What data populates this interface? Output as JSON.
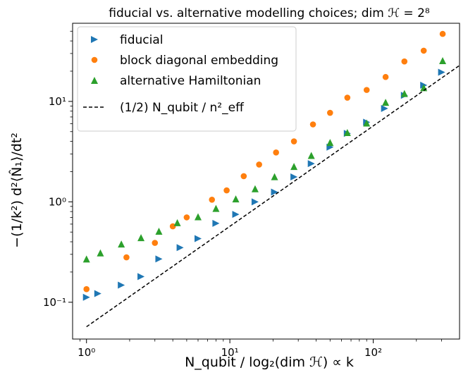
{
  "chart_data": {
    "type": "scatter",
    "title": "fiducial vs. alternative modelling choices; dim ℋ = 2⁸",
    "xlabel": "N_qubit / log₂(dim ℋ)  ∝  k",
    "ylabel": "−(1/k²) d²⟨N̂₁⟩/dt²",
    "x_scale": "log",
    "y_scale": "log",
    "xlim": [
      0.8,
      400
    ],
    "ylim": [
      0.043,
      60
    ],
    "x_ticks": [
      {
        "value": 1,
        "label": "10⁰"
      },
      {
        "value": 10,
        "label": "10¹"
      },
      {
        "value": 100,
        "label": "10²"
      }
    ],
    "y_ticks": [
      {
        "value": 0.1,
        "label": "10⁻¹"
      },
      {
        "value": 1,
        "label": "10⁰"
      },
      {
        "value": 10,
        "label": "10¹"
      }
    ],
    "grid": false,
    "legend_position": "top-left",
    "series": [
      {
        "name": "fiducial",
        "marker": "triangle-right",
        "color": "#1f77b4",
        "x": [
          1.0,
          1.2,
          1.75,
          2.4,
          3.2,
          4.5,
          6.0,
          8.0,
          11.0,
          15.0,
          20.5,
          28.0,
          37.0,
          50.0,
          66.0,
          90.0,
          120.0,
          165.0,
          225.0,
          300.0
        ],
        "y": [
          0.112,
          0.122,
          0.148,
          0.18,
          0.27,
          0.35,
          0.43,
          0.61,
          0.75,
          1.0,
          1.25,
          1.77,
          2.4,
          3.5,
          4.8,
          6.2,
          8.5,
          11.5,
          14.5,
          19.5
        ]
      },
      {
        "name": "block diagonal embedding",
        "marker": "circle",
        "color": "#ff7f0e",
        "x": [
          1.0,
          1.9,
          3.0,
          4.0,
          5.0,
          7.5,
          9.5,
          12.5,
          16.0,
          21.0,
          28.0,
          38.0,
          50.0,
          66.0,
          90.0,
          122.0,
          165.0,
          225.0,
          305.0
        ],
        "y": [
          0.135,
          0.28,
          0.39,
          0.57,
          0.7,
          1.05,
          1.3,
          1.8,
          2.35,
          3.1,
          4.0,
          5.9,
          7.7,
          10.9,
          13.0,
          17.5,
          25.0,
          32.0,
          47.0
        ]
      },
      {
        "name": "alternative Hamiltonian",
        "marker": "triangle-up",
        "color": "#2ca02c",
        "x": [
          1.0,
          1.25,
          1.75,
          2.4,
          3.2,
          4.3,
          6.0,
          8.0,
          11.0,
          15.0,
          20.5,
          28.0,
          37.0,
          50.0,
          66.0,
          90.0,
          122.0,
          165.0,
          225.0,
          305.0
        ],
        "y": [
          0.27,
          0.31,
          0.38,
          0.44,
          0.51,
          0.62,
          0.71,
          0.86,
          1.07,
          1.35,
          1.78,
          2.25,
          2.9,
          3.9,
          4.9,
          6.1,
          9.8,
          12.0,
          13.7,
          25.5
        ]
      },
      {
        "name": "(1/2) N_qubit / n²_eff",
        "marker": "line-dashed",
        "color": "#000000",
        "x": [
          1.0,
          400.0
        ],
        "y": [
          0.057,
          22.8
        ]
      }
    ]
  }
}
